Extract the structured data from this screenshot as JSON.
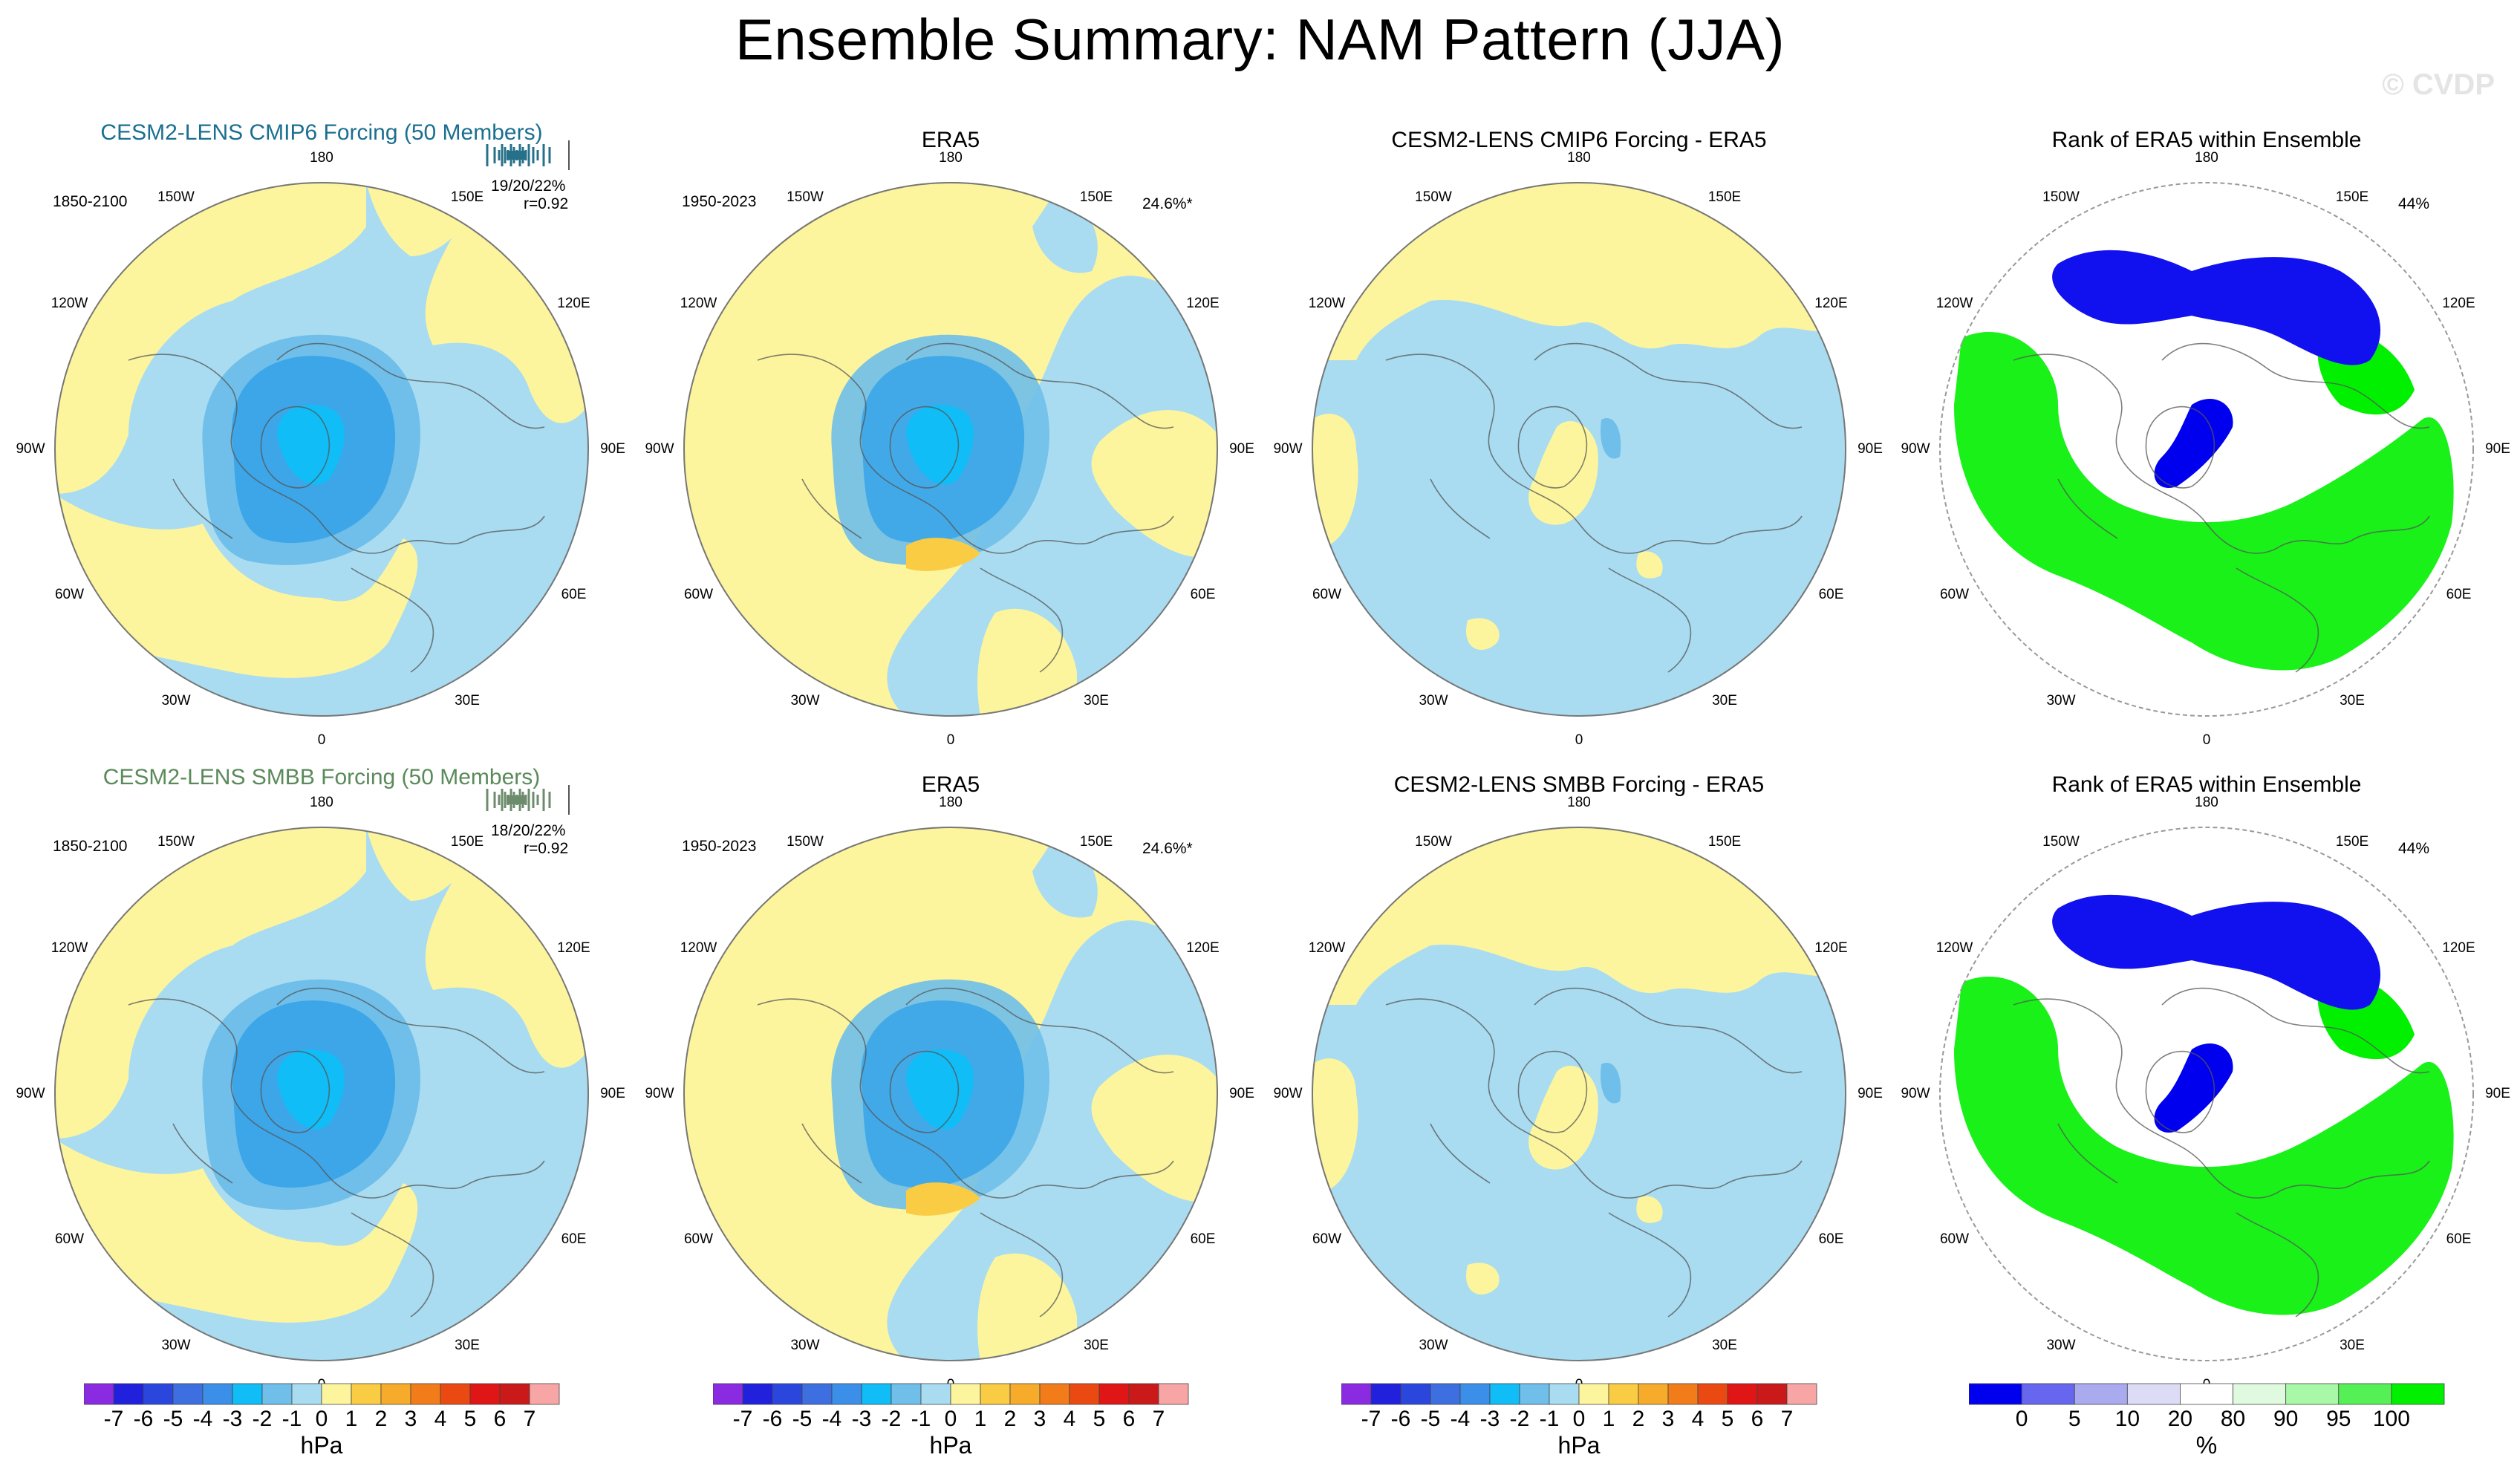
{
  "title": "Ensemble Summary: NAM Pattern (JJA)",
  "watermark": "© CVDP",
  "colors": {
    "blue_light": "#a9dcf1",
    "blue_mid": "#6fbfea",
    "blue_med2": "#3da6e8",
    "blue_deep": "#10bdf6",
    "yellow": "#fdf59d",
    "orange_light": "#f9cc44",
    "rank_green": "#00f000",
    "rank_green_light": "#a8f8a8",
    "rank_blue": "#0000ee",
    "rank_blue_light": "#aaaaee",
    "hist_top": "#27708a",
    "hist_bottom": "#6d8c6d",
    "title_top": "#1b6f90",
    "title_bottom": "#5a8a5a"
  },
  "longitude_labels": [
    "180",
    "150E",
    "120E",
    "90E",
    "60E",
    "30E",
    "0",
    "30W",
    "60W",
    "90W",
    "120W",
    "150W"
  ],
  "rows": [
    {
      "panels": [
        {
          "title": "CESM2-LENS CMIP6 Forcing (50 Members)",
          "period": "1850-2100",
          "stat1": "19/20/22%",
          "stat2": "r=0.92",
          "kind": "ens"
        },
        {
          "title": "ERA5",
          "period": "1950-2023",
          "stat1": "24.6%*",
          "kind": "obs"
        },
        {
          "title": "CESM2-LENS CMIP6 Forcing - ERA5",
          "kind": "diff"
        },
        {
          "title": "Rank of ERA5 within Ensemble",
          "stat1": "44%",
          "kind": "rank"
        }
      ]
    },
    {
      "panels": [
        {
          "title": "CESM2-LENS SMBB Forcing (50 Members)",
          "period": "1850-2100",
          "stat1": "18/20/22%",
          "stat2": "r=0.92",
          "kind": "ens"
        },
        {
          "title": "ERA5",
          "period": "1950-2023",
          "stat1": "24.6%*",
          "kind": "obs"
        },
        {
          "title": "CESM2-LENS SMBB Forcing - ERA5",
          "kind": "diff"
        },
        {
          "title": "Rank of ERA5 within Ensemble",
          "stat1": "44%",
          "kind": "rank"
        }
      ]
    }
  ],
  "colorbars": [
    {
      "unit": "hPa",
      "ticks": [
        "-7",
        "-6",
        "-5",
        "-4",
        "-3",
        "-2",
        "-1",
        "0",
        "1",
        "2",
        "3",
        "4",
        "5",
        "6",
        "7"
      ],
      "colors": [
        "#8a2be2",
        "#2020dd",
        "#2a46dd",
        "#3d6fe0",
        "#3b8fe8",
        "#10bdf6",
        "#6fbfea",
        "#a9dcf1",
        "#fdf59d",
        "#f9cc44",
        "#f7ab2a",
        "#f27c1a",
        "#ea4a12",
        "#e01515",
        "#c91919",
        "#f7a5a5"
      ]
    },
    {
      "unit": "hPa",
      "ticks": [
        "-7",
        "-6",
        "-5",
        "-4",
        "-3",
        "-2",
        "-1",
        "0",
        "1",
        "2",
        "3",
        "4",
        "5",
        "6",
        "7"
      ],
      "colors": [
        "#8a2be2",
        "#2020dd",
        "#2a46dd",
        "#3d6fe0",
        "#3b8fe8",
        "#10bdf6",
        "#6fbfea",
        "#a9dcf1",
        "#fdf59d",
        "#f9cc44",
        "#f7ab2a",
        "#f27c1a",
        "#ea4a12",
        "#e01515",
        "#c91919",
        "#f7a5a5"
      ]
    },
    {
      "unit": "hPa",
      "ticks": [
        "-7",
        "-6",
        "-5",
        "-4",
        "-3",
        "-2",
        "-1",
        "0",
        "1",
        "2",
        "3",
        "4",
        "5",
        "6",
        "7"
      ],
      "colors": [
        "#8a2be2",
        "#2020dd",
        "#2a46dd",
        "#3d6fe0",
        "#3b8fe8",
        "#10bdf6",
        "#6fbfea",
        "#a9dcf1",
        "#fdf59d",
        "#f9cc44",
        "#f7ab2a",
        "#f27c1a",
        "#ea4a12",
        "#e01515",
        "#c91919",
        "#f7a5a5"
      ]
    },
    {
      "unit": "%",
      "ticks": [
        "0",
        "5",
        "10",
        "20",
        "80",
        "90",
        "95",
        "100"
      ],
      "colors": [
        "#0000ee",
        "#6666ee",
        "#aaaaee",
        "#dcdcf6",
        "#ffffff",
        "#e0fae0",
        "#a8f8a8",
        "#55f055",
        "#00f000"
      ]
    }
  ],
  "chart_data": {
    "type": "heatmap",
    "title": "Ensemble Summary: NAM Pattern (JJA)",
    "projection": "north polar stereographic",
    "units": "hPa",
    "colorbar_levels_hPa": [
      -7,
      -6,
      -5,
      -4,
      -3,
      -2,
      -1,
      0,
      1,
      2,
      3,
      4,
      5,
      6,
      7
    ],
    "rank_levels_percent": [
      0,
      5,
      10,
      20,
      80,
      90,
      95,
      100
    ],
    "panels": [
      {
        "row": 1,
        "col": 1,
        "label": "CESM2-LENS CMIP6 Forcing (50 Members)",
        "period": "1850-2100",
        "pattern_min_hPa": -3
      },
      {
        "row": 1,
        "col": 2,
        "label": "ERA5",
        "period": "1950-2023",
        "variance_explained": "24.6%*",
        "pattern_min_hPa": -3,
        "pattern_max_hPa": 2
      },
      {
        "row": 1,
        "col": 3,
        "label": "CESM2-LENS CMIP6 Forcing - ERA5",
        "pattern_min_hPa": -2,
        "pattern_max_hPa": 1
      },
      {
        "row": 1,
        "col": 4,
        "label": "Rank of ERA5 within Ensemble",
        "stat": "44%"
      },
      {
        "row": 2,
        "col": 1,
        "label": "CESM2-LENS SMBB Forcing (50 Members)",
        "period": "1850-2100",
        "pattern_min_hPa": -3
      },
      {
        "row": 2,
        "col": 2,
        "label": "ERA5",
        "period": "1950-2023",
        "variance_explained": "24.6%*",
        "pattern_min_hPa": -3,
        "pattern_max_hPa": 2
      },
      {
        "row": 2,
        "col": 3,
        "label": "CESM2-LENS SMBB Forcing - ERA5",
        "pattern_min_hPa": -2,
        "pattern_max_hPa": 1
      },
      {
        "row": 2,
        "col": 4,
        "label": "Rank of ERA5 within Ensemble",
        "stat": "44%"
      }
    ]
  }
}
